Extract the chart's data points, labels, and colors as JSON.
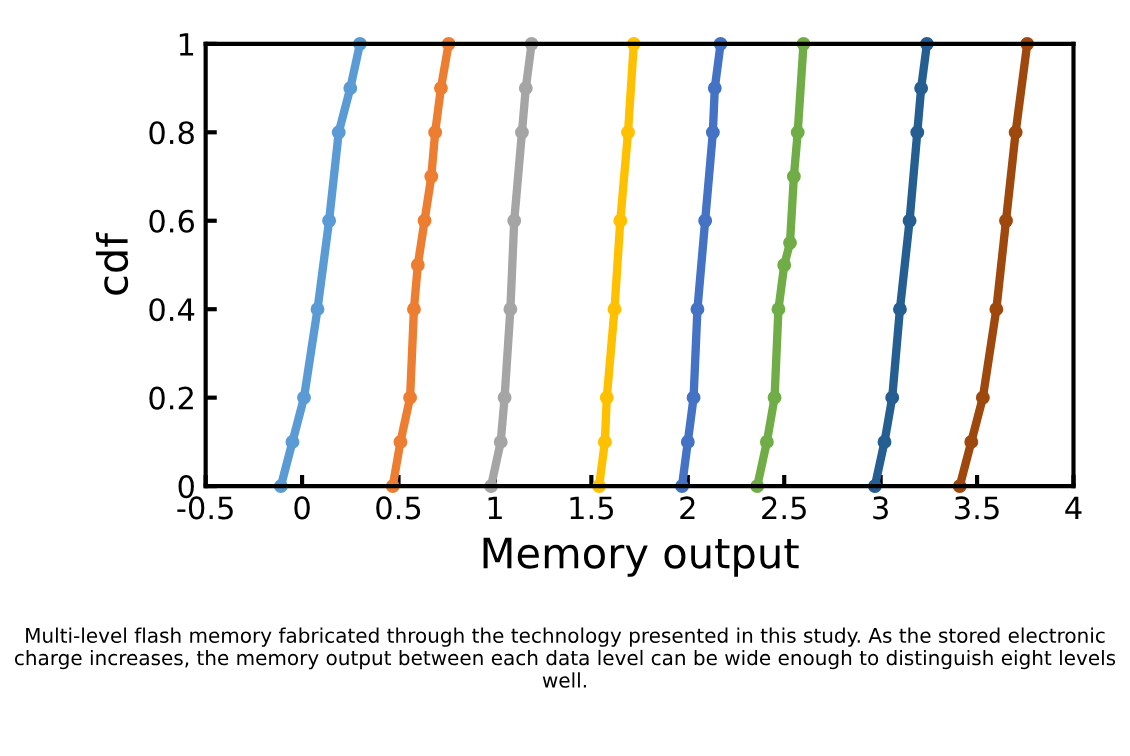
{
  "chart_data": {
    "type": "line",
    "xlabel": "Memory output",
    "ylabel": "cdf",
    "xlim": [
      -0.5,
      4
    ],
    "xticks": [
      -0.5,
      0,
      0.5,
      1,
      1.5,
      2,
      2.5,
      3,
      3.5,
      4
    ],
    "ylim": [
      0,
      1
    ],
    "yticks": [
      0,
      0.2,
      0.4,
      0.6,
      0.8,
      1
    ],
    "grid": false,
    "marker": "circle",
    "line_style": "solid",
    "series": [
      {
        "color": "#5b9bd5",
        "x": [
          -0.11,
          -0.05,
          0.01,
          0.08,
          0.14,
          0.19,
          0.25,
          0.3
        ],
        "values": [
          0,
          0.1,
          0.2,
          0.4,
          0.6,
          0.8,
          0.9,
          1
        ]
      },
      {
        "color": "#ed7d31",
        "x": [
          0.47,
          0.51,
          0.56,
          0.58,
          0.6,
          0.635,
          0.67,
          0.69,
          0.72,
          0.76
        ],
        "values": [
          0,
          0.1,
          0.2,
          0.4,
          0.5,
          0.6,
          0.7,
          0.8,
          0.9,
          1
        ]
      },
      {
        "color": "#a5a5a5",
        "x": [
          0.98,
          1.03,
          1.05,
          1.08,
          1.1,
          1.14,
          1.16,
          1.19
        ],
        "values": [
          0,
          0.1,
          0.2,
          0.4,
          0.6,
          0.8,
          0.9,
          1
        ]
      },
      {
        "color": "#ffc000",
        "x": [
          1.54,
          1.57,
          1.58,
          1.62,
          1.65,
          1.69,
          1.72
        ],
        "values": [
          0,
          0.1,
          0.2,
          0.4,
          0.6,
          0.8,
          1
        ]
      },
      {
        "color": "#4472c4",
        "x": [
          1.97,
          2.0,
          2.03,
          2.05,
          2.09,
          2.13,
          2.14,
          2.17
        ],
        "values": [
          0,
          0.1,
          0.2,
          0.4,
          0.6,
          0.8,
          0.9,
          1
        ]
      },
      {
        "color": "#70ad47",
        "x": [
          2.36,
          2.41,
          2.45,
          2.47,
          2.5,
          2.53,
          2.55,
          2.57,
          2.6
        ],
        "values": [
          0,
          0.1,
          0.2,
          0.4,
          0.5,
          0.55,
          0.7,
          0.8,
          1
        ]
      },
      {
        "color": "#255e91",
        "x": [
          2.97,
          3.02,
          3.06,
          3.1,
          3.15,
          3.19,
          3.21,
          3.24
        ],
        "values": [
          0,
          0.1,
          0.2,
          0.4,
          0.6,
          0.8,
          0.9,
          1
        ]
      },
      {
        "color": "#9e480e",
        "x": [
          3.41,
          3.47,
          3.53,
          3.6,
          3.65,
          3.7,
          3.76
        ],
        "values": [
          0,
          0.1,
          0.2,
          0.4,
          0.6,
          0.8,
          1
        ]
      }
    ],
    "annotations": [
      "Multi-level flash memory fabricated through the technology presented in this study. As the stored electronic charge increases, the memory output between each data level can be wide enough to distinguish eight levels well."
    ]
  }
}
